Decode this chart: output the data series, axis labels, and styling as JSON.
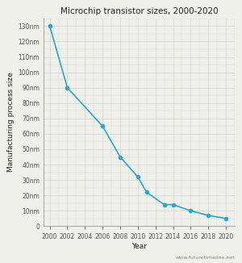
{
  "title": "Microchip transistor sizes, 2000-2020",
  "xlabel": "Year",
  "ylabel": "Manufacturing process size",
  "watermark": "www.futuretimeline.net",
  "x": [
    2000,
    2002,
    2006,
    2008,
    2010,
    2011,
    2013,
    2014,
    2016,
    2018,
    2020
  ],
  "y": [
    130,
    90,
    65,
    45,
    32,
    22,
    14,
    14,
    10,
    7,
    5
  ],
  "yticks": [
    0,
    10,
    20,
    30,
    40,
    50,
    60,
    70,
    80,
    90,
    100,
    110,
    120,
    130
  ],
  "ytick_labels": [
    "0",
    "10nm",
    "20nm",
    "30nm",
    "40nm",
    "50nm",
    "60nm",
    "70nm",
    "80nm",
    "90nm",
    "100nm",
    "110nm",
    "120nm",
    "130nm"
  ],
  "xticks": [
    2000,
    2002,
    2004,
    2006,
    2008,
    2010,
    2012,
    2014,
    2016,
    2018,
    2020
  ],
  "ylim": [
    0,
    135
  ],
  "xlim": [
    1999.3,
    2021.0
  ],
  "line_color": "#29a8c8",
  "marker_color": "#29a8c8",
  "bg_color": "#f0f0eb",
  "grid_color": "#cccccc",
  "title_fontsize": 7.5,
  "label_fontsize": 6.5,
  "tick_fontsize": 5.5,
  "watermark_fontsize": 4.5
}
